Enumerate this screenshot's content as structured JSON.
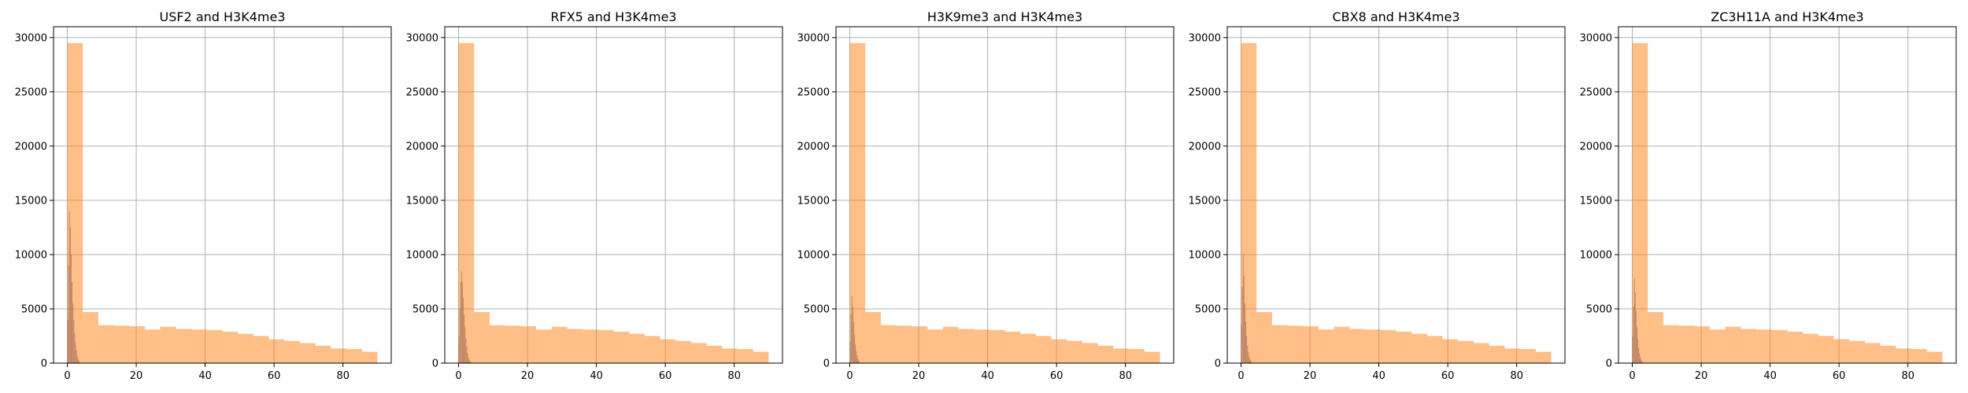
{
  "colors": {
    "series_a": "#ff7f0e",
    "series_b": "#8c564b"
  },
  "chart_data": [
    {
      "type": "histogram",
      "title": "USF2 and H3K4me3",
      "xlim": [
        -4,
        94
      ],
      "ylim": [
        0,
        31000
      ],
      "xticks": [
        0,
        20,
        40,
        60,
        80
      ],
      "yticks": [
        0,
        5000,
        10000,
        15000,
        20000,
        25000,
        30000
      ],
      "grid": true,
      "series": [
        {
          "color": "orange",
          "alpha": 0.5,
          "bin_edges": [
            0,
            4.5,
            9,
            13.5,
            18,
            22.5,
            27,
            31.5,
            36,
            40.5,
            45,
            49.5,
            54,
            58.5,
            63,
            67.5,
            72,
            76.5,
            81,
            85.5,
            90
          ],
          "counts": [
            29500,
            4700,
            3500,
            3450,
            3400,
            3100,
            3350,
            3150,
            3100,
            3050,
            2900,
            2700,
            2500,
            2200,
            2050,
            1850,
            1600,
            1350,
            1300,
            1050
          ]
        },
        {
          "color": "brown",
          "alpha": 0.5,
          "bin_edges": [
            0,
            0.25,
            0.5,
            0.75,
            1,
            1.25,
            1.5,
            1.75,
            2,
            2.25,
            2.5,
            2.75,
            3,
            3.25,
            3.5,
            3.75,
            4
          ],
          "counts": [
            4000,
            9000,
            14000,
            12500,
            10000,
            7500,
            5500,
            4000,
            2800,
            1900,
            1200,
            700,
            400,
            200,
            100,
            0
          ]
        }
      ]
    },
    {
      "type": "histogram",
      "title": "RFX5 and H3K4me3",
      "xlim": [
        -4,
        94
      ],
      "ylim": [
        0,
        31000
      ],
      "xticks": [
        0,
        20,
        40,
        60,
        80
      ],
      "yticks": [
        0,
        5000,
        10000,
        15000,
        20000,
        25000,
        30000
      ],
      "grid": true,
      "series": [
        {
          "color": "orange",
          "alpha": 0.5,
          "bin_edges": [
            0,
            4.5,
            9,
            13.5,
            18,
            22.5,
            27,
            31.5,
            36,
            40.5,
            45,
            49.5,
            54,
            58.5,
            63,
            67.5,
            72,
            76.5,
            81,
            85.5,
            90
          ],
          "counts": [
            29500,
            4700,
            3500,
            3450,
            3400,
            3100,
            3350,
            3150,
            3100,
            3050,
            2900,
            2700,
            2500,
            2200,
            2050,
            1850,
            1600,
            1350,
            1300,
            1050
          ]
        },
        {
          "color": "brown",
          "alpha": 0.5,
          "bin_edges": [
            0,
            0.25,
            0.5,
            0.75,
            1,
            1.25,
            1.5,
            1.75,
            2,
            2.25,
            2.5,
            2.75,
            3,
            3.25,
            3.5,
            3.75,
            4
          ],
          "counts": [
            2500,
            5000,
            7500,
            8500,
            7500,
            6000,
            4500,
            3300,
            2300,
            1500,
            900,
            500,
            300,
            150,
            80,
            0
          ]
        }
      ]
    },
    {
      "type": "histogram",
      "title": "H3K9me3 and H3K4me3",
      "xlim": [
        -4,
        94
      ],
      "ylim": [
        0,
        31000
      ],
      "xticks": [
        0,
        20,
        40,
        60,
        80
      ],
      "yticks": [
        0,
        5000,
        10000,
        15000,
        20000,
        25000,
        30000
      ],
      "grid": true,
      "series": [
        {
          "color": "orange",
          "alpha": 0.5,
          "bin_edges": [
            0,
            4.5,
            9,
            13.5,
            18,
            22.5,
            27,
            31.5,
            36,
            40.5,
            45,
            49.5,
            54,
            58.5,
            63,
            67.5,
            72,
            76.5,
            81,
            85.5,
            90
          ],
          "counts": [
            29500,
            4700,
            3500,
            3450,
            3400,
            3100,
            3350,
            3150,
            3100,
            3050,
            2900,
            2700,
            2500,
            2200,
            2050,
            1850,
            1600,
            1350,
            1300,
            1050
          ]
        },
        {
          "color": "brown",
          "alpha": 0.5,
          "bin_edges": [
            0,
            0.25,
            0.5,
            0.75,
            1,
            1.25,
            1.5,
            1.75,
            2,
            2.25,
            2.5,
            2.75,
            3,
            3.25,
            3.5,
            3.75,
            4
          ],
          "counts": [
            2000,
            4500,
            6200,
            5200,
            3800,
            2600,
            1700,
            1100,
            700,
            400,
            200,
            100,
            50,
            0,
            0,
            0
          ]
        }
      ]
    },
    {
      "type": "histogram",
      "title": "CBX8 and H3K4me3",
      "xlim": [
        -4,
        94
      ],
      "ylim": [
        0,
        31000
      ],
      "xticks": [
        0,
        20,
        40,
        60,
        80
      ],
      "yticks": [
        0,
        5000,
        10000,
        15000,
        20000,
        25000,
        30000
      ],
      "grid": true,
      "series": [
        {
          "color": "orange",
          "alpha": 0.5,
          "bin_edges": [
            0,
            4.5,
            9,
            13.5,
            18,
            22.5,
            27,
            31.5,
            36,
            40.5,
            45,
            49.5,
            54,
            58.5,
            63,
            67.5,
            72,
            76.5,
            81,
            85.5,
            90
          ],
          "counts": [
            29500,
            4700,
            3500,
            3450,
            3400,
            3100,
            3350,
            3150,
            3100,
            3050,
            2900,
            2700,
            2500,
            2200,
            2050,
            1850,
            1600,
            1350,
            1300,
            1050
          ]
        },
        {
          "color": "brown",
          "alpha": 0.5,
          "bin_edges": [
            0,
            0.25,
            0.5,
            0.75,
            1,
            1.25,
            1.5,
            1.75,
            2,
            2.25,
            2.5,
            2.75,
            3,
            3.25,
            3.5,
            3.75,
            4
          ],
          "counts": [
            3500,
            7000,
            10000,
            8000,
            5500,
            3800,
            2500,
            1600,
            1000,
            600,
            350,
            180,
            90,
            40,
            0,
            0
          ]
        }
      ]
    },
    {
      "type": "histogram",
      "title": "ZC3H11A and H3K4me3",
      "xlim": [
        -4,
        94
      ],
      "ylim": [
        0,
        31000
      ],
      "xticks": [
        0,
        20,
        40,
        60,
        80
      ],
      "yticks": [
        0,
        5000,
        10000,
        15000,
        20000,
        25000,
        30000
      ],
      "grid": true,
      "series": [
        {
          "color": "orange",
          "alpha": 0.5,
          "bin_edges": [
            0,
            4.5,
            9,
            13.5,
            18,
            22.5,
            27,
            31.5,
            36,
            40.5,
            45,
            49.5,
            54,
            58.5,
            63,
            67.5,
            72,
            76.5,
            81,
            85.5,
            90
          ],
          "counts": [
            29500,
            4700,
            3500,
            3450,
            3400,
            3100,
            3350,
            3150,
            3100,
            3050,
            2900,
            2700,
            2500,
            2200,
            2050,
            1850,
            1600,
            1350,
            1300,
            1050
          ]
        },
        {
          "color": "brown",
          "alpha": 0.5,
          "bin_edges": [
            0,
            0.25,
            0.5,
            0.75,
            1,
            1.25,
            1.5,
            1.75,
            2,
            2.25,
            2.5,
            2.75,
            3,
            3.25,
            3.5,
            3.75,
            4
          ],
          "counts": [
            2500,
            5200,
            7800,
            6500,
            4800,
            3300,
            2200,
            1400,
            900,
            550,
            300,
            150,
            70,
            30,
            0,
            0
          ]
        }
      ]
    }
  ]
}
